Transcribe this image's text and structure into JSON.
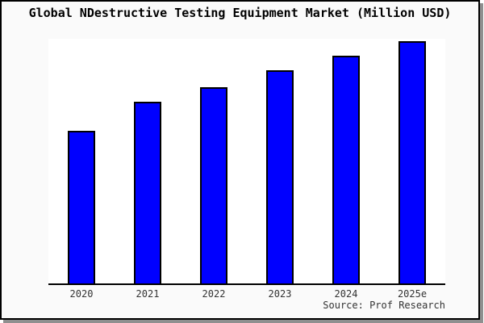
{
  "figure": {
    "title": "Global NDestructive Testing Equipment Market (Million USD)",
    "source": "Source: Prof Research",
    "background_color": "#fafafa",
    "plot_background_color": "#ffffff",
    "border_color": "#000000",
    "shadow_color": "#8f8f8f"
  },
  "chart_data": {
    "type": "bar",
    "title": "Global NDestructive Testing Equipment Market (Million USD)",
    "categories": [
      "2020",
      "2021",
      "2022",
      "2023",
      "2024",
      "2025e"
    ],
    "values": [
      63,
      75,
      81,
      88,
      94,
      100
    ],
    "xlabel": "",
    "ylabel": "",
    "ylim": [
      0,
      101
    ],
    "grid": false,
    "legend": false,
    "y_axis_visible": false,
    "bar_color": "#0000ff",
    "bar_edge_color": "#000000",
    "source": "Source: Prof Research",
    "note": "No y-axis scale or value labels are shown in the chart; values are relative bar-height estimates normalized so 2025e = 100"
  }
}
